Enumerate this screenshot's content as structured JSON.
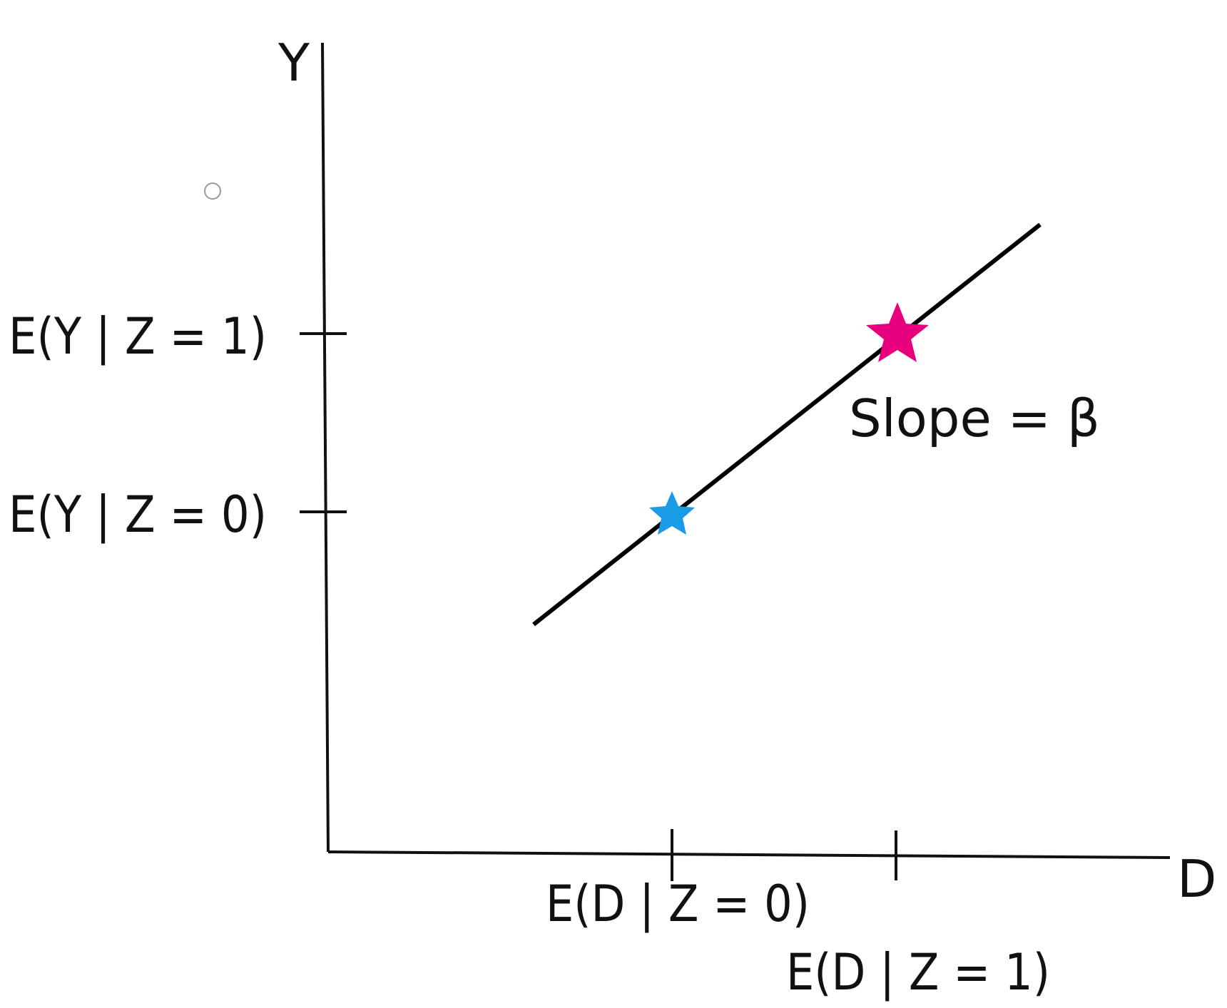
{
  "axes": {
    "y_label": "Y",
    "x_label": "D"
  },
  "y_ticks": [
    {
      "label": "E(Y | Z = 1)"
    },
    {
      "label": "E(Y | Z = 0)"
    }
  ],
  "x_ticks": [
    {
      "label": "E(D | Z = 0)"
    },
    {
      "label": "E(D | Z = 1)"
    }
  ],
  "line_annotation": "Slope = β",
  "markers": [
    {
      "name": "z0-point",
      "color": "#1a9be6",
      "shape": "star"
    },
    {
      "name": "z1-point",
      "color": "#e6007e",
      "shape": "star"
    }
  ],
  "colors": {
    "axis": "#111111",
    "line": "#000000"
  }
}
